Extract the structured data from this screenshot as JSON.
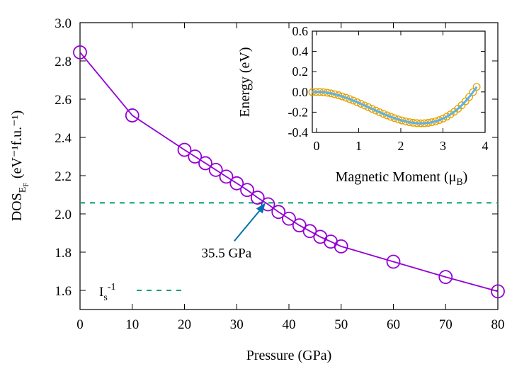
{
  "colors": {
    "main_series": "#9400d3",
    "threshold_line": "#009e73",
    "arrow": "#0072b2",
    "inset_markers": "#e69f00",
    "inset_fit": "#56b4e9"
  },
  "chart_data": [
    {
      "type": "line",
      "xlabel": "Pressure (GPa)",
      "ylabel": "DOS",
      "ylabel_subscript": "E",
      "ylabel_subsubscript": "F",
      "ylabel_units": "(eV⁻¹f.u.⁻¹)",
      "xlim": [
        0,
        80
      ],
      "ylim": [
        1.5,
        3.0
      ],
      "xticks": [
        "0",
        "10",
        "20",
        "30",
        "40",
        "50",
        "60",
        "70",
        "80"
      ],
      "yticks": [
        "1.6",
        "1.8",
        "2.0",
        "2.2",
        "2.4",
        "2.6",
        "2.8",
        "3.0"
      ],
      "xtick_values": [
        0,
        10,
        20,
        30,
        40,
        50,
        60,
        70,
        80
      ],
      "ytick_values": [
        1.6,
        1.8,
        2.0,
        2.2,
        2.4,
        2.6,
        2.8,
        3.0
      ],
      "series": [
        {
          "marker": "open-circle",
          "x": [
            0,
            10,
            20,
            22,
            24,
            26,
            28,
            30,
            32,
            34,
            36,
            38,
            40,
            42,
            44,
            46,
            48,
            50,
            60,
            70,
            80
          ],
          "y": [
            2.845,
            2.515,
            2.335,
            2.3,
            2.265,
            2.23,
            2.195,
            2.16,
            2.125,
            2.085,
            2.05,
            2.01,
            1.975,
            1.94,
            1.91,
            1.88,
            1.855,
            1.83,
            1.75,
            1.67,
            1.595
          ]
        }
      ],
      "threshold": {
        "y": 2.058,
        "x_from": 0,
        "x_to": 80
      },
      "legend": {
        "label": "I",
        "subscript": "s",
        "superscript": "-1",
        "placement": "bottom-left"
      },
      "annotations": [
        {
          "text": "35.5 GPa",
          "points_to_x": 35.5,
          "points_to_y": 2.058
        }
      ],
      "grid": false
    },
    {
      "type": "scatter",
      "role": "inset",
      "placement": "top-right",
      "xlabel": "Magnetic Moment (μ",
      "xlabel_subscript": "B",
      "xlabel_close": ")",
      "ylabel": "Energy (eV)",
      "xlim": [
        -0.1,
        4.0
      ],
      "ylim": [
        -0.4,
        0.6
      ],
      "xticks": [
        "0",
        "1",
        "2",
        "3",
        "4"
      ],
      "yticks": [
        "-0.4",
        "-0.2",
        "0.0",
        "0.2",
        "0.4",
        "0.6"
      ],
      "xtick_values": [
        0,
        1,
        2,
        3,
        4
      ],
      "ytick_values": [
        -0.4,
        -0.2,
        0.0,
        0.2,
        0.4,
        0.6
      ],
      "fit_curve": {
        "type": "polynomial",
        "coefficients": [
          0,
          0.0067,
          -0.156,
          0.0415
        ]
      },
      "markers_x_range": [
        -0.1,
        3.8
      ],
      "marker_count": 45,
      "grid": false
    }
  ]
}
